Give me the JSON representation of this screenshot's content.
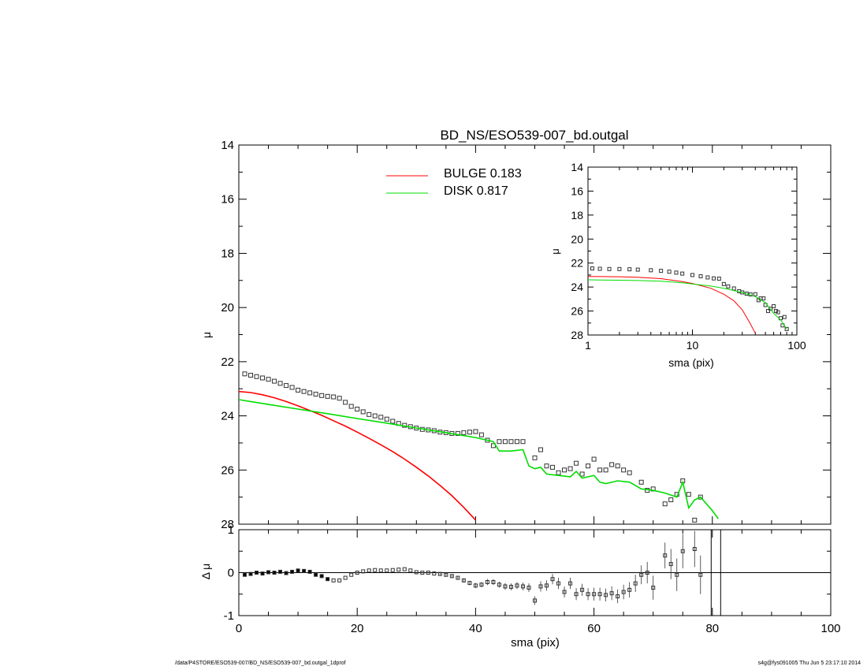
{
  "chart_data": [
    {
      "id": "main",
      "type": "scatter",
      "title": "BD_NS/ESO539-007_bd.outgal",
      "ylabel": "μ",
      "xlim": [
        0,
        100
      ],
      "ylim": [
        28,
        14
      ],
      "yticks": [
        "14",
        "16",
        "18",
        "20",
        "22",
        "24",
        "26",
        "28"
      ],
      "legend": {
        "position": "top-center",
        "entries": [
          {
            "label": "BULGE  0.183",
            "color": "#ff0000"
          },
          {
            "label": "DISK  0.817",
            "color": "#00dd00"
          }
        ]
      },
      "series": [
        {
          "kind": "points",
          "marker": "square",
          "x": [
            1,
            2,
            3,
            4,
            5,
            6,
            7,
            8,
            9,
            10,
            11,
            12,
            13,
            14,
            15,
            16,
            17,
            18,
            19,
            20,
            21,
            22,
            23,
            24,
            25,
            26,
            27,
            28,
            29,
            30,
            31,
            32,
            33,
            34,
            35,
            36,
            37,
            38,
            39,
            40,
            41,
            42,
            43,
            44,
            45,
            46,
            47,
            48,
            50,
            51,
            52,
            53,
            54,
            55,
            56,
            57,
            58,
            59,
            60,
            61,
            62,
            63,
            64,
            65,
            66,
            68,
            69,
            70,
            72,
            73,
            74,
            75,
            76,
            77,
            78
          ],
          "y": [
            22.45,
            22.5,
            22.55,
            22.6,
            22.65,
            22.72,
            22.8,
            22.88,
            22.95,
            23.05,
            23.1,
            23.15,
            23.2,
            23.25,
            23.28,
            23.3,
            23.35,
            23.5,
            23.65,
            23.75,
            23.85,
            23.95,
            24.0,
            24.05,
            24.12,
            24.2,
            24.28,
            24.35,
            24.4,
            24.45,
            24.5,
            24.52,
            24.55,
            24.6,
            24.62,
            24.65,
            24.65,
            24.62,
            24.6,
            24.58,
            24.7,
            24.9,
            25.1,
            24.95,
            24.95,
            24.95,
            24.95,
            24.95,
            25.55,
            25.25,
            25.85,
            25.9,
            26.1,
            26.0,
            25.95,
            25.75,
            26.15,
            25.85,
            25.6,
            26.0,
            26.0,
            25.8,
            25.85,
            26.0,
            26.1,
            26.45,
            26.75,
            26.7,
            27.25,
            27.1,
            26.9,
            26.4,
            26.9,
            27.85,
            27.0
          ]
        },
        {
          "name": "BULGE",
          "kind": "line",
          "color": "#ff0000",
          "x": [
            0,
            2,
            4,
            6,
            8,
            10,
            12,
            14,
            16,
            18,
            20,
            22,
            24,
            26,
            28,
            30,
            32,
            34,
            36,
            38,
            40
          ],
          "y": [
            23.1,
            23.14,
            23.22,
            23.33,
            23.47,
            23.63,
            23.8,
            23.98,
            24.18,
            24.38,
            24.6,
            24.83,
            25.07,
            25.32,
            25.6,
            25.9,
            26.22,
            26.57,
            26.95,
            27.38,
            27.85
          ]
        },
        {
          "name": "DISK",
          "kind": "line",
          "color": "#00dd00",
          "x": [
            0,
            5,
            10,
            15,
            20,
            25,
            30,
            35,
            40,
            43,
            44,
            46,
            48,
            49,
            50,
            51,
            52,
            54,
            56,
            57,
            58,
            59,
            60,
            61,
            62,
            64,
            66,
            68,
            70,
            72,
            74,
            75,
            76,
            77,
            78,
            80,
            81
          ],
          "y": [
            23.4,
            23.58,
            23.75,
            23.92,
            24.1,
            24.27,
            24.45,
            24.62,
            24.8,
            24.95,
            25.3,
            25.3,
            25.25,
            25.85,
            25.95,
            25.9,
            26.15,
            26.2,
            26.25,
            26.05,
            26.3,
            26.25,
            26.2,
            26.45,
            26.5,
            26.4,
            26.45,
            26.7,
            26.75,
            26.85,
            27.0,
            26.45,
            27.4,
            27.1,
            27.0,
            27.5,
            27.8
          ]
        }
      ]
    },
    {
      "id": "inset",
      "type": "line",
      "xlabel": "sma (pix)",
      "ylabel": "μ",
      "xscale": "log",
      "xlim": [
        1,
        100
      ],
      "ylim": [
        28,
        14
      ],
      "xticks": [
        "1",
        "10",
        "100"
      ],
      "yticks": [
        "14",
        "16",
        "18",
        "20",
        "22",
        "24",
        "26",
        "28"
      ],
      "series": [
        {
          "kind": "points",
          "marker": "square",
          "x": [
            1.1,
            1.3,
            1.6,
            2,
            2.5,
            3,
            4,
            5,
            6,
            7,
            8,
            10,
            12,
            14,
            16,
            18,
            20,
            22,
            25,
            28,
            30,
            33,
            36,
            40,
            43,
            45,
            48,
            50,
            53,
            56,
            60,
            63,
            66,
            70,
            73,
            76,
            80
          ],
          "y": [
            22.45,
            22.48,
            22.5,
            22.5,
            22.52,
            22.55,
            22.6,
            22.65,
            22.72,
            22.8,
            22.88,
            23.0,
            23.1,
            23.2,
            23.28,
            23.3,
            23.75,
            23.95,
            24.12,
            24.35,
            24.45,
            24.55,
            24.62,
            24.6,
            25.1,
            24.95,
            24.95,
            25.5,
            26.0,
            25.8,
            25.6,
            26.0,
            26.1,
            26.6,
            27.2,
            26.5,
            27.5
          ]
        },
        {
          "name": "BULGE",
          "kind": "line",
          "color": "#ff0000",
          "x": [
            1,
            2,
            3,
            5,
            8,
            10,
            15,
            20,
            25,
            30,
            35,
            40
          ],
          "y": [
            23.12,
            23.14,
            23.18,
            23.3,
            23.55,
            23.7,
            24.1,
            24.6,
            25.15,
            25.9,
            26.9,
            27.85
          ]
        },
        {
          "name": "DISK",
          "kind": "line",
          "color": "#00dd00",
          "x": [
            1,
            2,
            3,
            5,
            8,
            10,
            15,
            20,
            30,
            40,
            50,
            60,
            70,
            80
          ],
          "y": [
            23.4,
            23.43,
            23.46,
            23.52,
            23.65,
            23.75,
            23.92,
            24.1,
            24.45,
            24.8,
            25.3,
            26.2,
            26.75,
            27.5
          ]
        }
      ]
    },
    {
      "id": "residual",
      "type": "scatter",
      "xlabel": "sma (pix)",
      "ylabel": "Δ μ",
      "xlim": [
        0,
        100
      ],
      "ylim": [
        -1,
        1
      ],
      "xticks": [
        "0",
        "20",
        "40",
        "60",
        "80",
        "100"
      ],
      "yticks": [
        "-1",
        "0",
        "1"
      ],
      "series": [
        {
          "kind": "points",
          "marker": "square",
          "x": [
            1,
            2,
            3,
            4,
            5,
            6,
            7,
            8,
            9,
            10,
            11,
            12,
            13,
            14,
            15,
            16,
            17,
            18,
            19,
            20,
            21,
            22,
            23,
            24,
            25,
            26,
            27,
            28,
            29,
            30,
            31,
            32,
            33,
            34,
            35,
            36,
            37,
            38,
            39,
            40,
            41,
            42,
            43,
            44,
            45,
            46,
            47,
            48,
            49,
            50,
            51,
            52,
            53,
            54,
            55,
            56,
            57,
            58,
            59,
            60,
            61,
            62,
            63,
            64,
            65,
            66,
            67,
            68,
            69,
            70,
            72,
            73,
            74,
            75,
            77,
            78
          ],
          "y": [
            -0.05,
            -0.03,
            0.0,
            -0.02,
            0.01,
            0.0,
            0.02,
            -0.01,
            0.02,
            0.05,
            0.04,
            0.02,
            -0.05,
            -0.08,
            -0.15,
            -0.18,
            -0.18,
            -0.12,
            -0.05,
            0.0,
            0.03,
            0.05,
            0.06,
            0.05,
            0.05,
            0.06,
            0.07,
            0.08,
            0.05,
            0.01,
            0.0,
            0.0,
            -0.02,
            -0.03,
            -0.05,
            -0.08,
            -0.12,
            -0.18,
            -0.24,
            -0.3,
            -0.28,
            -0.22,
            -0.22,
            -0.28,
            -0.32,
            -0.33,
            -0.3,
            -0.32,
            -0.35,
            -0.65,
            -0.32,
            -0.3,
            -0.15,
            -0.25,
            -0.45,
            -0.25,
            -0.5,
            -0.4,
            -0.5,
            -0.5,
            -0.5,
            -0.52,
            -0.48,
            -0.55,
            -0.45,
            -0.4,
            -0.25,
            -0.05,
            0.0,
            -0.35,
            0.4,
            0.2,
            -0.05,
            0.5,
            0.55,
            -0.05
          ],
          "err": [
            0.02,
            0.02,
            0.02,
            0.02,
            0.02,
            0.02,
            0.02,
            0.02,
            0.02,
            0.02,
            0.02,
            0.02,
            0.02,
            0.02,
            0.02,
            0.02,
            0.02,
            0.02,
            0.02,
            0.02,
            0.02,
            0.02,
            0.02,
            0.02,
            0.02,
            0.03,
            0.03,
            0.03,
            0.03,
            0.03,
            0.03,
            0.03,
            0.03,
            0.04,
            0.04,
            0.04,
            0.04,
            0.05,
            0.05,
            0.06,
            0.06,
            0.07,
            0.07,
            0.07,
            0.08,
            0.08,
            0.08,
            0.09,
            0.1,
            0.1,
            0.12,
            0.12,
            0.12,
            0.13,
            0.13,
            0.13,
            0.14,
            0.14,
            0.14,
            0.15,
            0.15,
            0.15,
            0.16,
            0.16,
            0.17,
            0.18,
            0.2,
            0.22,
            0.25,
            0.28,
            0.3,
            0.35,
            0.38,
            0.4,
            0.42,
            0.45
          ]
        }
      ]
    }
  ],
  "footer": {
    "left": "/data/P4STORE/ESO539-007/BD_NS/ESO539-007_bd.outgal_1dprof",
    "right": "s4g@fys091005  Thu Jun  5 23:17:10 2014"
  }
}
